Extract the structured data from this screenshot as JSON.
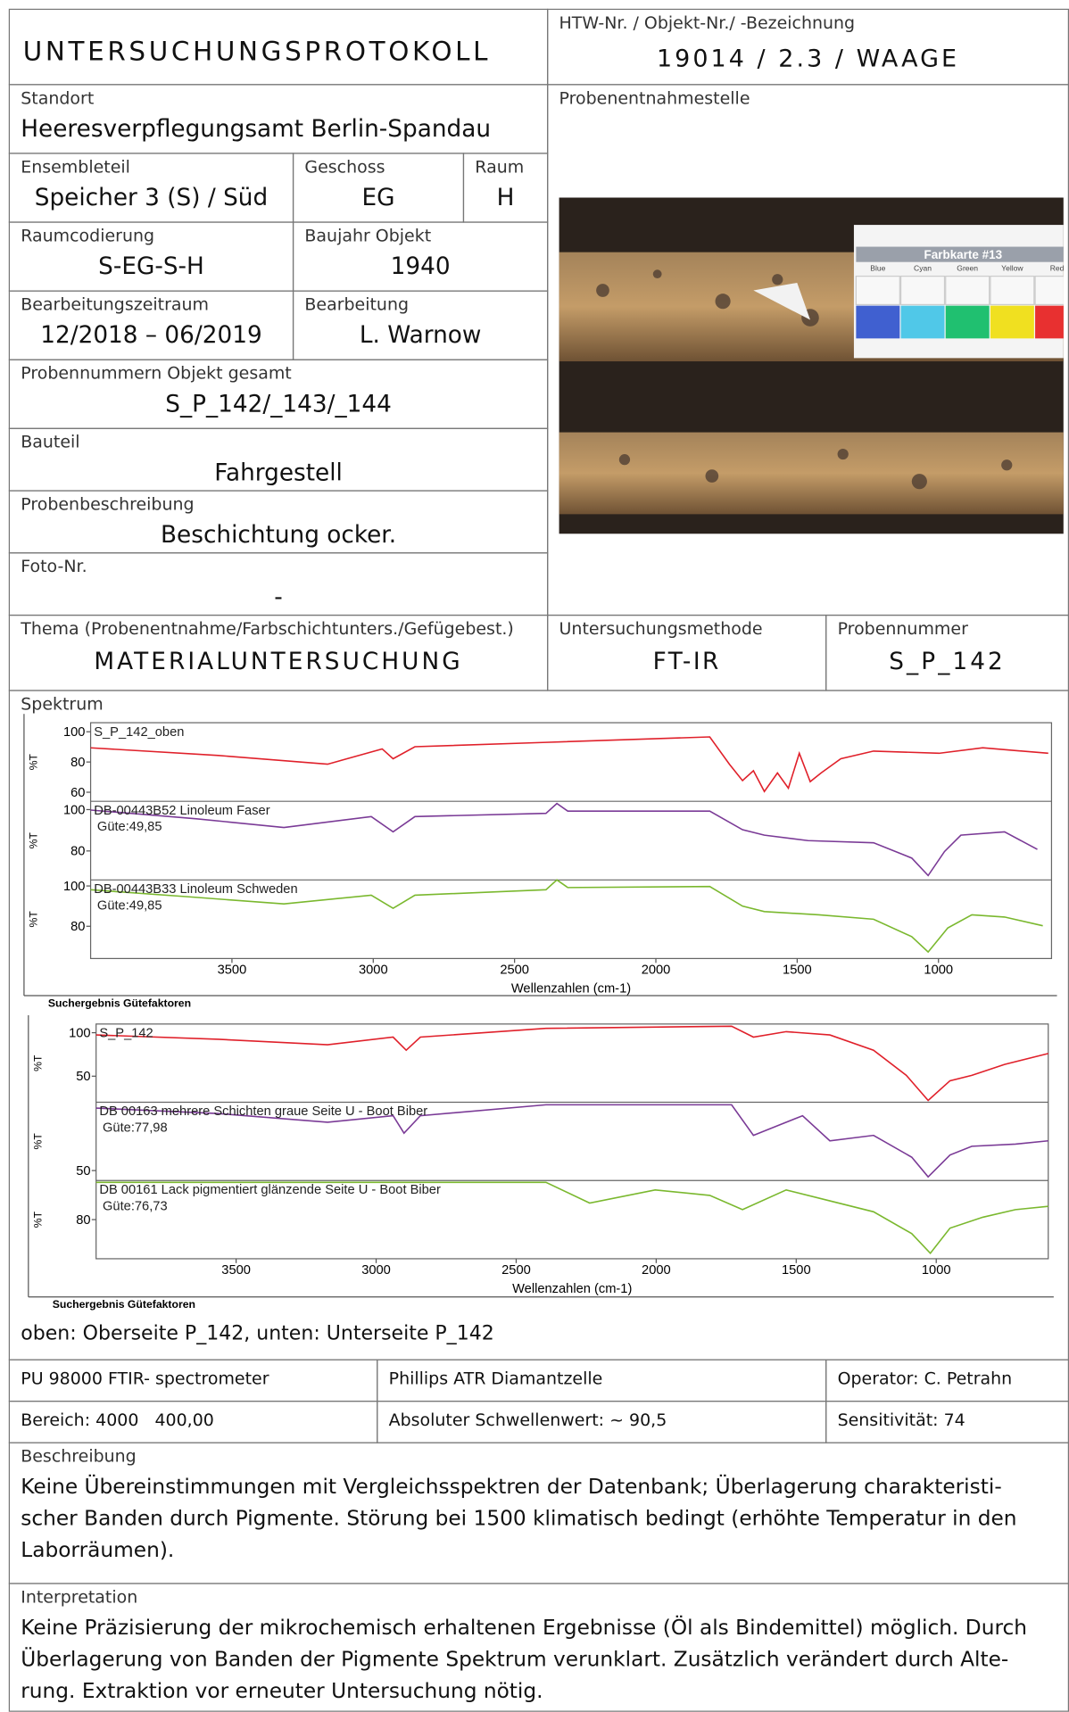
{
  "header": {
    "title": "UNTERSUCHUNGSPROTOKOLL",
    "id_label": "HTW-Nr. / Objekt-Nr./ -Bezeichnung",
    "id_value": "19014 / 2.3 / WAAGE"
  },
  "fields": [
    {
      "label": "Standort",
      "value": "Heeresverpflegungsamt Berlin-Spandau"
    },
    {
      "label": "Ensembleteil",
      "value": "Speicher 3 (S) / Süd"
    },
    {
      "label": "Geschoss",
      "value": "EG"
    },
    {
      "label": "Raum",
      "value": "H"
    },
    {
      "label": "Raumcodierung",
      "value": "S-EG-S-H"
    },
    {
      "label": "Baujahr Objekt",
      "value": "1940"
    },
    {
      "label": "Bearbeitungszeitraum",
      "value": "12/2018 – 06/2019"
    },
    {
      "label": "Bearbeitung",
      "value": "L. Warnow"
    },
    {
      "label": "Probennummern Objekt gesamt",
      "value": "S_P_142/_143/_144"
    },
    {
      "label": "Bauteil",
      "value": "Fahrgestell"
    },
    {
      "label": "Probenbeschreibung",
      "value": "Beschichtung ocker."
    },
    {
      "label": "Foto-Nr.",
      "value": "-"
    },
    {
      "label": "Thema (Probenentnahme/Farbschichtunters./Gefügebest.)",
      "value": "MATERIALUNTERSUCHUNG"
    },
    {
      "label": "Untersuchungsmethode",
      "value": "FT-IR"
    },
    {
      "label": "Probennummer",
      "value": "S_P_142"
    }
  ],
  "photo": {
    "label": "Probenentnahmestelle",
    "card": "Farbkarte #13",
    "colors": [
      "Blue",
      "Cyan",
      "Green",
      "Yellow",
      "Red"
    ]
  },
  "spectrum": {
    "label": "Spektrum",
    "panels": [
      {
        "y_label": "%T",
        "x_label": "Wellenzahlen (cm-1)",
        "footer": "Suchergebnis Gütefaktoren",
        "xlim": [
          4000,
          600
        ],
        "xticks": [
          3500,
          3000,
          2500,
          2000,
          1500,
          1000
        ],
        "traces": [
          {
            "name": "S_P_142_oben",
            "color": "#e0202a",
            "ylim": [
              54,
              106
            ],
            "yticks": [
              100,
              80,
              60
            ]
          },
          {
            "name": "DB-00443B52 Linoleum Faser",
            "quality": "Güte:49,85",
            "color": "#7a3a96",
            "ylim": [
              66,
              104
            ],
            "yticks": [
              100,
              80
            ]
          },
          {
            "name": "DB-00443B33 Linoleum Schweden",
            "quality": "Güte:49,85",
            "color": "#7ab82e",
            "ylim": [
              64,
              103
            ],
            "yticks": [
              100,
              80
            ]
          }
        ]
      },
      {
        "y_label": "%T",
        "x_label": "Wellenzahlen (cm-1)",
        "footer": "Suchergebnis Gütefaktoren",
        "xlim": [
          4000,
          600
        ],
        "xticks": [
          3500,
          3000,
          2500,
          2000,
          1500,
          1000
        ],
        "traces": [
          {
            "name": "S_P_142",
            "color": "#e0202a",
            "ylim": [
              20,
              110
            ],
            "yticks": [
              100,
              50
            ]
          },
          {
            "name": "DB 00163 mehrere Schichten graue Seite U - Boot Biber",
            "quality": "Güte:77,98",
            "color": "#7a3a96",
            "ylim": [
              42,
              105
            ],
            "yticks": [
              50
            ]
          },
          {
            "name": "DB 00161 Lack pigmentiert glänzende Seite U - Boot Biber",
            "quality": "Güte:76,73",
            "color": "#7ab82e",
            "ylim": [
              60,
              100
            ],
            "yticks": [
              80
            ]
          }
        ]
      }
    ],
    "caption": "oben: Oberseite P_142, unten: Unterseite P_142"
  },
  "instrument": [
    [
      "PU 98000 FTIR- spectrometer",
      "Phillips ATR Diamantzelle",
      "Operator: C. Petrahn"
    ],
    [
      "Bereich: 4000   400,00",
      "Absoluter Schwellenwert: ~ 90,5",
      "Sensitivität: 74"
    ]
  ],
  "description": {
    "label": "Beschreibung",
    "lines": [
      "Keine Übereinstimmungen mit Vergleichsspektren der Datenbank; Überlagerung charakteristi-",
      "scher Banden durch Pigmente. Störung bei 1500 klimatisch bedingt (erhöhte Temperatur in den",
      "Laborräumen)."
    ]
  },
  "interpretation": {
    "label": "Interpretation",
    "lines": [
      "Keine Präzisierung der mikrochemisch erhaltenen Ergebnisse (Öl als Bindemittel) möglich. Durch",
      "Überlagerung von Banden der Pigmente Spektrum verunklart. Zusätzlich verändert durch Alte-",
      "rung. Extraktion vor erneuter Untersuchung nötig."
    ]
  }
}
